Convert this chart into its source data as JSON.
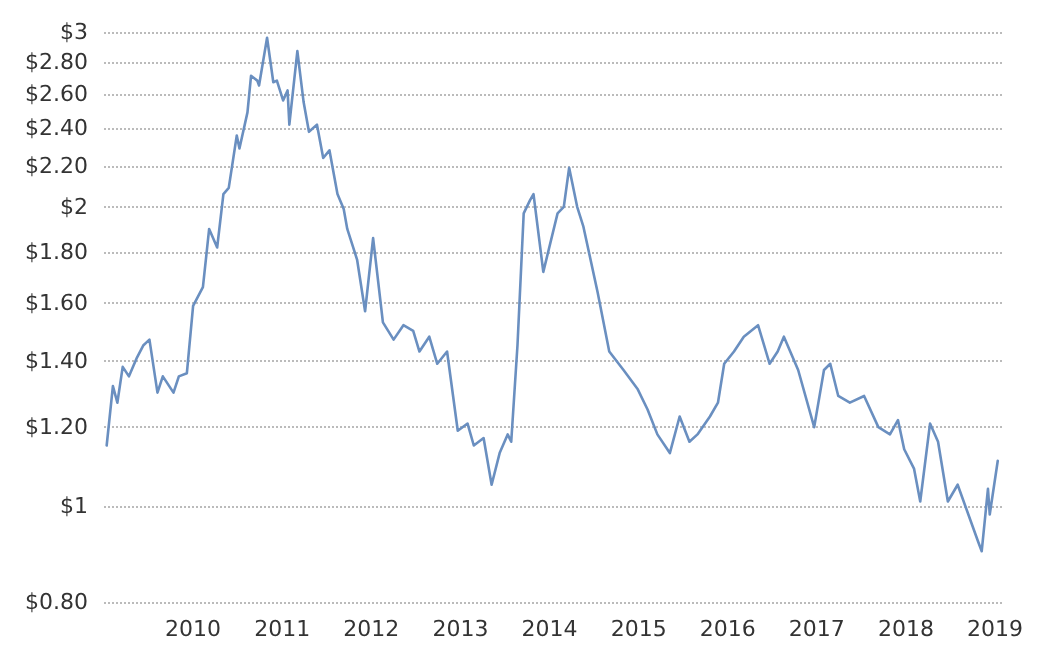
{
  "chart_data": {
    "type": "line",
    "log": "y",
    "grid": "y",
    "marker": "none",
    "line_style": "solid",
    "xlim": [
      2009,
      2019.1
    ],
    "xticks": [
      2010,
      2011,
      2012,
      2013,
      2014,
      2015,
      2016,
      2017,
      2018,
      2019
    ],
    "ylim": [
      0.8,
      3
    ],
    "yticks": [
      {
        "value": 0.8,
        "label": "$0.80"
      },
      {
        "value": 1,
        "label": "$1"
      },
      {
        "value": 1.2,
        "label": "$1.20"
      },
      {
        "value": 1.4,
        "label": "$1.40"
      },
      {
        "value": 1.6,
        "label": "$1.60"
      },
      {
        "value": 1.8,
        "label": "$1.80"
      },
      {
        "value": 2,
        "label": "$2"
      },
      {
        "value": 2.2,
        "label": "$2.20"
      },
      {
        "value": 2.4,
        "label": "$2.40"
      },
      {
        "value": 2.6,
        "label": "$2.60"
      },
      {
        "value": 2.8,
        "label": "$2.80"
      },
      {
        "value": 3,
        "label": "$3"
      }
    ],
    "series": [
      {
        "color": "#6a8fc0",
        "x": [
          2009.03,
          2009.1,
          2009.15,
          2009.21,
          2009.28,
          2009.37,
          2009.44,
          2009.51,
          2009.6,
          2009.66,
          2009.78,
          2009.84,
          2009.93,
          2010.0,
          2010.11,
          2010.18,
          2010.27,
          2010.34,
          2010.4,
          2010.49,
          2010.52,
          2010.61,
          2010.65,
          2010.72,
          2010.74,
          2010.83,
          2010.9,
          2010.94,
          2011.01,
          2011.06,
          2011.08,
          2011.17,
          2011.24,
          2011.3,
          2011.39,
          2011.46,
          2011.53,
          2011.62,
          2011.69,
          2011.73,
          2011.84,
          2011.93,
          2012.02,
          2012.13,
          2012.25,
          2012.36,
          2012.47,
          2012.54,
          2012.65,
          2012.74,
          2012.85,
          2012.97,
          2013.08,
          2013.15,
          2013.26,
          2013.35,
          2013.44,
          2013.53,
          2013.57,
          2013.64,
          2013.71,
          2013.78,
          2013.82,
          2013.93,
          2014.09,
          2014.16,
          2014.22,
          2014.31,
          2014.38,
          2014.54,
          2014.67,
          2014.83,
          2014.99,
          2015.1,
          2015.21,
          2015.35,
          2015.46,
          2015.57,
          2015.66,
          2015.8,
          2015.89,
          2015.96,
          2016.07,
          2016.18,
          2016.34,
          2016.47,
          2016.56,
          2016.63,
          2016.79,
          2016.97,
          2017.08,
          2017.15,
          2017.24,
          2017.37,
          2017.53,
          2017.69,
          2017.82,
          2017.91,
          2017.98,
          2018.09,
          2018.16,
          2018.27,
          2018.36,
          2018.47,
          2018.58,
          2018.7,
          2018.81,
          2018.85,
          2018.92,
          2018.94,
          2019.03
        ],
        "values": [
          1.15,
          1.32,
          1.27,
          1.38,
          1.35,
          1.41,
          1.45,
          1.47,
          1.3,
          1.35,
          1.3,
          1.35,
          1.36,
          1.59,
          1.66,
          1.9,
          1.82,
          2.06,
          2.09,
          2.36,
          2.29,
          2.49,
          2.71,
          2.68,
          2.65,
          2.96,
          2.67,
          2.68,
          2.56,
          2.62,
          2.42,
          2.87,
          2.55,
          2.38,
          2.42,
          2.24,
          2.28,
          2.06,
          1.99,
          1.9,
          1.77,
          1.57,
          1.86,
          1.53,
          1.47,
          1.52,
          1.5,
          1.43,
          1.48,
          1.39,
          1.43,
          1.19,
          1.21,
          1.15,
          1.17,
          1.05,
          1.13,
          1.18,
          1.16,
          1.45,
          1.97,
          2.03,
          2.06,
          1.72,
          1.97,
          2.0,
          2.19,
          2.0,
          1.91,
          1.64,
          1.43,
          1.37,
          1.31,
          1.25,
          1.18,
          1.13,
          1.23,
          1.16,
          1.18,
          1.23,
          1.27,
          1.39,
          1.43,
          1.48,
          1.52,
          1.39,
          1.43,
          1.48,
          1.37,
          1.2,
          1.37,
          1.39,
          1.29,
          1.27,
          1.29,
          1.2,
          1.18,
          1.22,
          1.14,
          1.09,
          1.01,
          1.21,
          1.16,
          1.01,
          1.05,
          0.98,
          0.92,
          0.9,
          1.04,
          0.98,
          1.11
        ]
      }
    ]
  }
}
